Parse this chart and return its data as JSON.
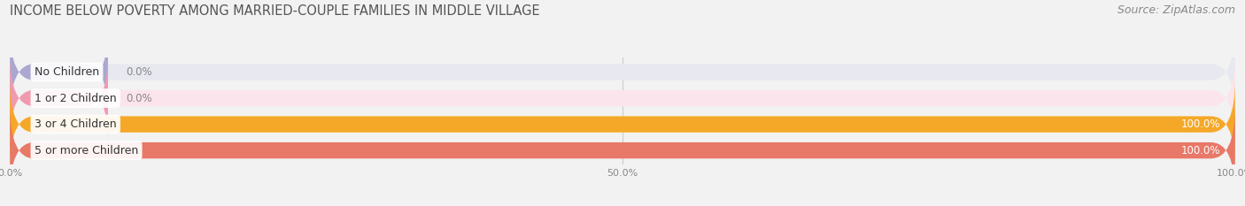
{
  "title": "INCOME BELOW POVERTY AMONG MARRIED-COUPLE FAMILIES IN MIDDLE VILLAGE",
  "source": "Source: ZipAtlas.com",
  "categories": [
    "No Children",
    "1 or 2 Children",
    "3 or 4 Children",
    "5 or more Children"
  ],
  "values": [
    0.0,
    0.0,
    100.0,
    100.0
  ],
  "bar_colors": [
    "#aaa8d0",
    "#f09ab0",
    "#f5a828",
    "#e87868"
  ],
  "bar_bg_colors": [
    "#e8e8f0",
    "#fce4ec",
    "#fdf0e0",
    "#fae4e0"
  ],
  "xlim": [
    0,
    100
  ],
  "background_color": "#f2f2f2",
  "tick_labels": [
    "0.0%",
    "50.0%",
    "100.0%"
  ],
  "tick_values": [
    0,
    50,
    100
  ],
  "title_fontsize": 10.5,
  "source_fontsize": 9,
  "bar_label_fontsize": 8.5,
  "category_fontsize": 9,
  "bar_height": 0.62,
  "value_label_inside": [
    false,
    false,
    true,
    true
  ],
  "small_bar_values": [
    8,
    8,
    100,
    100
  ]
}
